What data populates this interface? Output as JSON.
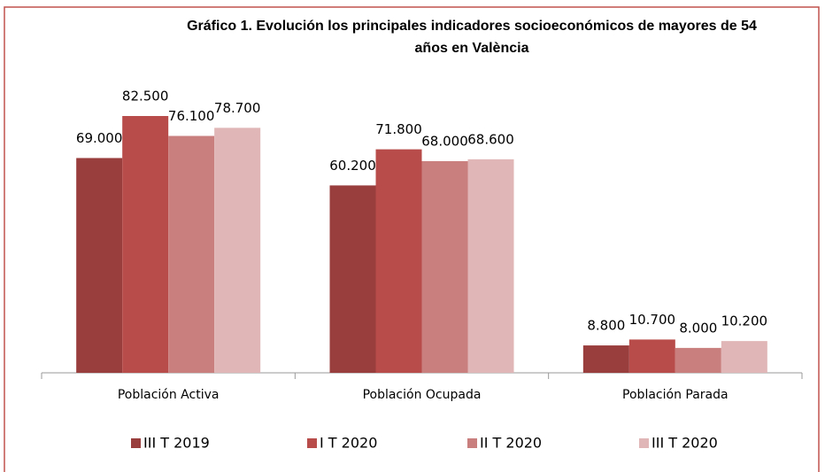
{
  "chart_data": {
    "type": "bar",
    "title": [
      "Gráfico 1. Evolución los principales indicadores socioeconómicos de mayores de 54",
      "años en València"
    ],
    "categories": [
      "Población Activa",
      "Población Ocupada",
      "Población Parada"
    ],
    "series": [
      {
        "name": "III T 2019",
        "color": "#993d3d",
        "values": [
          69000,
          60200,
          8800
        ],
        "value_labels": [
          "69.000",
          "60.200",
          "8.800"
        ]
      },
      {
        "name": "I T 2020",
        "color": "#b84c4a",
        "values": [
          82500,
          71800,
          10700
        ],
        "value_labels": [
          "82.500",
          "71.800",
          "10.700"
        ]
      },
      {
        "name": "II T 2020",
        "color": "#c97f7d",
        "values": [
          76100,
          68000,
          8000
        ],
        "value_labels": [
          "76.100",
          "68.000",
          "8.000"
        ]
      },
      {
        "name": "III T 2020",
        "color": "#e0b6b6",
        "values": [
          78700,
          68600,
          10200
        ],
        "value_labels": [
          "78.700",
          "68.600",
          "10.200"
        ]
      }
    ],
    "legend": "bottom"
  }
}
